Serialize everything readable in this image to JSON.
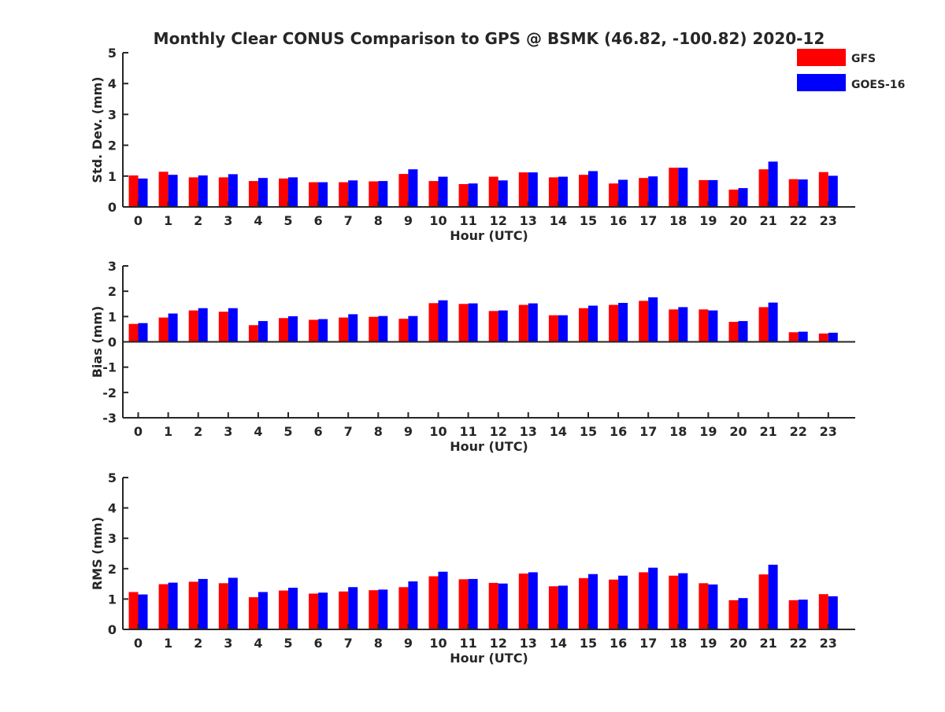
{
  "chart_data": {
    "type": "bar",
    "title": "Monthly Clear CONUS Comparison to GPS @ BSMK (46.82, -100.82) 2020-12",
    "legend": [
      {
        "name": "GFS",
        "color": "#ff0000"
      },
      {
        "name": "GOES-16",
        "color": "#0000ff"
      }
    ],
    "legend_position": "top-right",
    "categories": [
      "0",
      "1",
      "2",
      "3",
      "4",
      "5",
      "6",
      "7",
      "8",
      "9",
      "10",
      "11",
      "12",
      "13",
      "14",
      "15",
      "16",
      "17",
      "18",
      "19",
      "20",
      "21",
      "22",
      "23"
    ],
    "panels": [
      {
        "id": "std",
        "ylabel": "Std. Dev. (mm)",
        "xlabel": "Hour (UTC)",
        "ylim": [
          0,
          5
        ],
        "yticks": [
          "0",
          "1",
          "2",
          "3",
          "4",
          "5"
        ],
        "series": [
          {
            "name": "GFS",
            "values": [
              1.02,
              1.14,
              0.96,
              0.96,
              0.84,
              0.92,
              0.8,
              0.8,
              0.83,
              1.07,
              0.84,
              0.74,
              0.98,
              1.12,
              0.96,
              1.04,
              0.76,
              0.94,
              1.27,
              0.87,
              0.56,
              1.22,
              0.9,
              1.13
            ]
          },
          {
            "name": "GOES-16",
            "values": [
              0.92,
              1.04,
              1.02,
              1.06,
              0.94,
              0.96,
              0.8,
              0.86,
              0.84,
              1.22,
              0.98,
              0.76,
              0.86,
              1.12,
              0.98,
              1.16,
              0.88,
              0.99,
              1.27,
              0.87,
              0.61,
              1.47,
              0.89,
              1.01
            ]
          }
        ]
      },
      {
        "id": "bias",
        "ylabel": "Bias (mm)",
        "xlabel": "Hour (UTC)",
        "ylim": [
          -3,
          3
        ],
        "yticks": [
          "-3",
          "-2",
          "-1",
          "0",
          "1",
          "2",
          "3"
        ],
        "series": [
          {
            "name": "GFS",
            "values": [
              0.71,
              0.96,
              1.24,
              1.19,
              0.66,
              0.94,
              0.87,
              0.96,
              0.99,
              0.91,
              1.53,
              1.5,
              1.22,
              1.46,
              1.05,
              1.33,
              1.46,
              1.62,
              1.28,
              1.28,
              0.79,
              1.37,
              0.38,
              0.33
            ]
          },
          {
            "name": "GOES-16",
            "values": [
              0.74,
              1.12,
              1.33,
              1.33,
              0.82,
              1.01,
              0.9,
              1.09,
              1.02,
              1.02,
              1.64,
              1.52,
              1.24,
              1.52,
              1.05,
              1.43,
              1.54,
              1.76,
              1.37,
              1.24,
              0.82,
              1.55,
              0.4,
              0.36
            ]
          }
        ]
      },
      {
        "id": "rms",
        "ylabel": "RMS (mm)",
        "xlabel": "Hour (UTC)",
        "ylim": [
          0,
          5
        ],
        "yticks": [
          "0",
          "1",
          "2",
          "3",
          "4",
          "5"
        ],
        "series": [
          {
            "name": "GFS",
            "values": [
              1.23,
              1.49,
              1.57,
              1.52,
              1.06,
              1.28,
              1.18,
              1.25,
              1.29,
              1.39,
              1.75,
              1.65,
              1.53,
              1.84,
              1.42,
              1.69,
              1.64,
              1.88,
              1.77,
              1.52,
              0.96,
              1.81,
              0.96,
              1.16
            ]
          },
          {
            "name": "GOES-16",
            "values": [
              1.15,
              1.54,
              1.66,
              1.7,
              1.23,
              1.37,
              1.21,
              1.39,
              1.31,
              1.58,
              1.9,
              1.66,
              1.51,
              1.88,
              1.44,
              1.82,
              1.77,
              2.03,
              1.85,
              1.48,
              1.03,
              2.13,
              0.98,
              1.09
            ]
          }
        ]
      }
    ]
  }
}
